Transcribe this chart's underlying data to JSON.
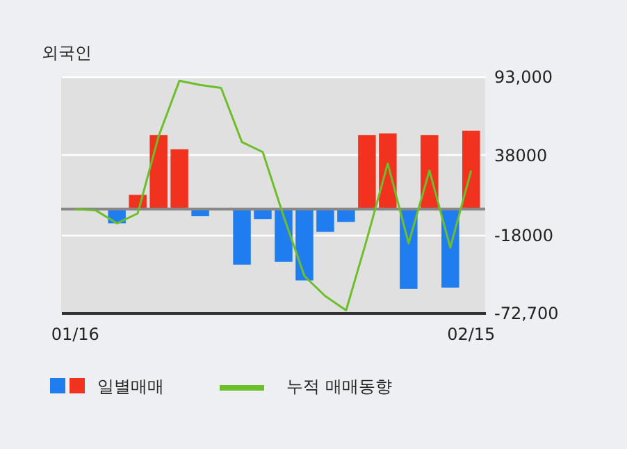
{
  "chart_data": {
    "type": "bar",
    "title": "외국인",
    "categories": [
      "01/16",
      null,
      null,
      null,
      null,
      null,
      null,
      null,
      null,
      null,
      null,
      null,
      null,
      null,
      null,
      null,
      null,
      null,
      null,
      "02/15"
    ],
    "series": [
      {
        "name": "일별매매",
        "colors": [
          "#1f7df0",
          "#1f7df0",
          "#1f7df0",
          "#f0321e",
          "#f0321e",
          "#f0321e",
          "#1f7df0",
          "#1f7df0",
          "#1f7df0",
          "#1f7df0",
          "#1f7df0",
          "#1f7df0",
          "#1f7df0",
          "#1f7df0",
          "#f0321e",
          "#f0321e",
          "#1f7df0",
          "#f0321e",
          "#1f7df0",
          "#f0321e"
        ],
        "values": [
          0,
          0,
          -10000,
          10000,
          52000,
          42000,
          -5000,
          0,
          -39000,
          -7000,
          -37000,
          -50000,
          -16000,
          -9000,
          52000,
          53000,
          -56000,
          52000,
          -55000,
          55000
        ]
      },
      {
        "name": "누적 매매동향",
        "type": "line",
        "color": "#6cbf2a",
        "values": [
          0,
          -1000,
          -10000,
          -3000,
          51000,
          90000,
          87000,
          85000,
          47000,
          40000,
          -5000,
          -47000,
          -61000,
          -71000,
          -21000,
          32000,
          -24000,
          27000,
          -27000,
          27000
        ]
      }
    ],
    "ylim": [
      -72700,
      93000
    ],
    "yticks": [
      {
        "value": 93000,
        "label": "93,000"
      },
      38000,
      -18000,
      {
        "value": -72700,
        "label": "-72,700"
      }
    ],
    "ref_lines": [
      {
        "axis": "y",
        "value": 0,
        "color": "#888888"
      }
    ],
    "grid": "y",
    "legend": "bottom"
  }
}
